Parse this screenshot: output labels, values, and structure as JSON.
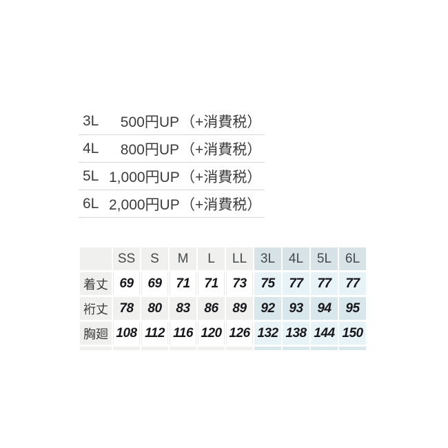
{
  "page": {
    "background": "#ffffff"
  },
  "price_list": {
    "rows": [
      {
        "size": "3L",
        "amount": "500円UP",
        "note": "（+消費税）"
      },
      {
        "size": "4L",
        "amount": "800円UP",
        "note": "（+消費税）"
      },
      {
        "size": "5L",
        "amount": "1,000円UP",
        "note": "（+消費税）"
      },
      {
        "size": "6L",
        "amount": "2,000円UP",
        "note": "（+消費税）"
      }
    ]
  },
  "size_table": {
    "columns": [
      "SS",
      "S",
      "M",
      "L",
      "LL",
      "3L",
      "4L",
      "5L",
      "6L"
    ],
    "highlighted_columns": [
      "3L",
      "4L",
      "5L",
      "6L"
    ],
    "rows": [
      {
        "label": "着丈",
        "values": [
          "69",
          "69",
          "71",
          "71",
          "73",
          "75",
          "77",
          "77",
          "77"
        ]
      },
      {
        "label": "裄丈",
        "values": [
          "78",
          "80",
          "83",
          "86",
          "89",
          "92",
          "93",
          "94",
          "95"
        ]
      },
      {
        "label": "胸廻",
        "values": [
          "108",
          "112",
          "116",
          "120",
          "126",
          "132",
          "138",
          "144",
          "150"
        ]
      }
    ]
  },
  "colors": {
    "cell_gray": "#f0f0ee",
    "cell_blue_header": "#d8e3e7",
    "cell_blue_light": "#e8f3f7",
    "cell_blue_medium": "#d8e7ec",
    "white_cell_border": "#e9e9e7",
    "price_divider": "#d6d6d6",
    "price_text": "#3c3c3c",
    "value_text": "#17171c"
  }
}
